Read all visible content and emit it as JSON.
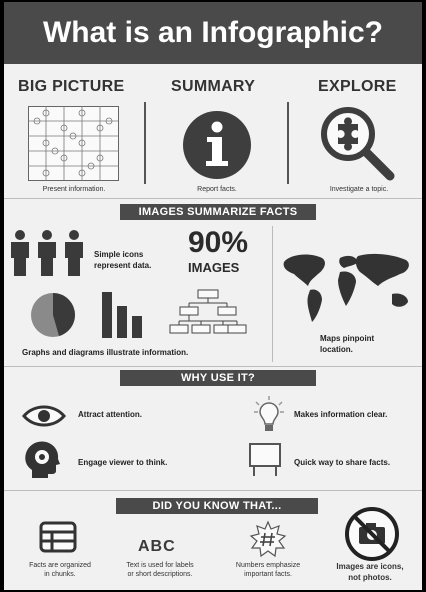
{
  "title": "What is an Infographic?",
  "top": {
    "col1_heading": "BIG PICTURE",
    "col1_caption": "Present information.",
    "col2_heading": "SUMMARY",
    "col2_caption": "Report facts.",
    "col3_heading": "EXPLORE",
    "col3_caption": "Investigate a topic."
  },
  "images_section": {
    "banner": "IMAGES SUMMARIZE FACTS",
    "icons_text": [
      "Simple icons",
      "represent data."
    ],
    "percent": "90%",
    "percent_label": "IMAGES",
    "graphs_text": "Graphs and diagrams illustrate information.",
    "maps_text": [
      "Maps pinpoint",
      "location."
    ]
  },
  "why_section": {
    "banner": "WHY USE IT?",
    "items": [
      {
        "icon": "eye-icon",
        "text": "Attract attention."
      },
      {
        "icon": "lightbulb-icon",
        "text": "Makes information clear."
      },
      {
        "icon": "head-gear-icon",
        "text": "Engage viewer to think."
      },
      {
        "icon": "sign-icon",
        "text": "Quick way to share facts."
      }
    ]
  },
  "know_section": {
    "banner": "DID YOU KNOW THAT...",
    "abc": "ABC",
    "items": [
      {
        "icon": "chunks-icon",
        "text": [
          "Facts are organized",
          "in chunks."
        ]
      },
      {
        "icon": "abc-text",
        "text": [
          "Text is used for labels",
          "or short descriptions."
        ]
      },
      {
        "icon": "number-burst-icon",
        "text": [
          "Numbers emphasize",
          "important facts."
        ]
      },
      {
        "icon": "no-photo-icon",
        "text": [
          "Images are icons,",
          "not photos."
        ]
      }
    ]
  },
  "colors": {
    "dark": "#4a4a4a",
    "background": "#f1f1f1",
    "text": "#2b2b2b"
  }
}
